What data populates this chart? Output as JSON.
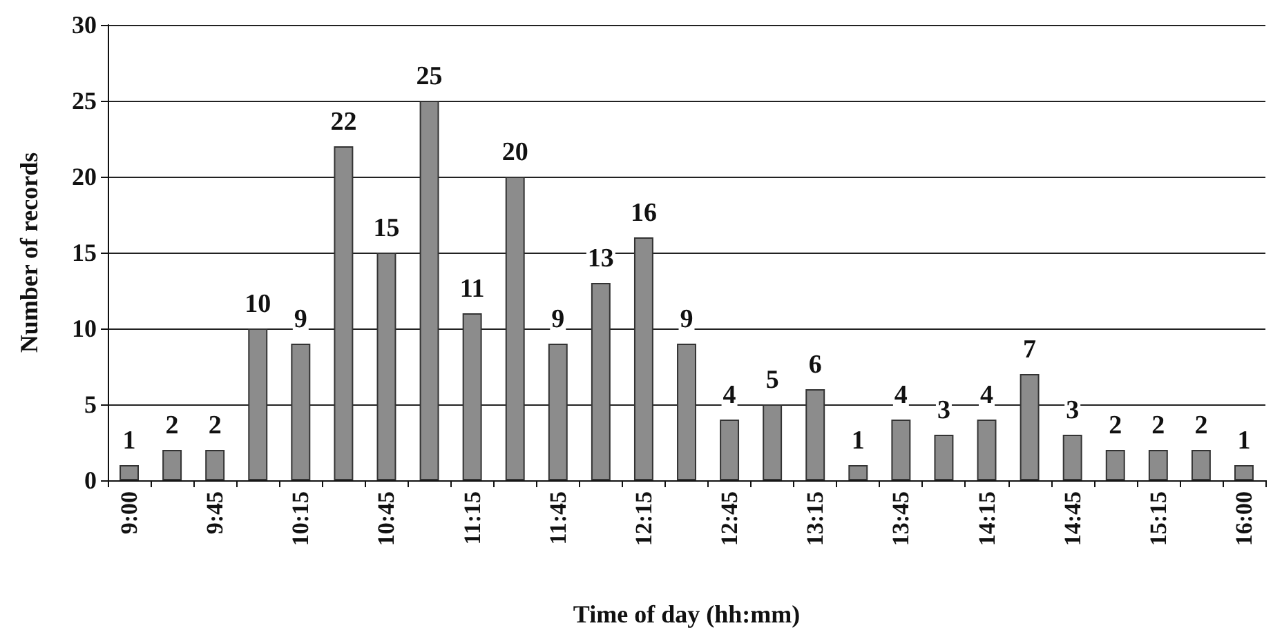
{
  "chart_data": {
    "type": "bar",
    "xlabel": "Time of day (hh:mm)",
    "ylabel": "Number of records",
    "categories": [
      "9:00",
      null,
      "9:45",
      null,
      "10:15",
      null,
      "10:45",
      null,
      "11:15",
      null,
      "11:45",
      null,
      "12:15",
      null,
      "12:45",
      null,
      "13:15",
      null,
      "13:45",
      null,
      "14:15",
      null,
      "14:45",
      null,
      "15:15",
      null,
      "16:00"
    ],
    "values": [
      1,
      2,
      2,
      10,
      9,
      22,
      15,
      25,
      11,
      20,
      9,
      13,
      16,
      9,
      4,
      5,
      6,
      1,
      4,
      3,
      4,
      7,
      3,
      2,
      2,
      2,
      1
    ],
    "color": "#8c8c8c",
    "ylim": [
      0,
      30
    ],
    "yticks": [
      0,
      5,
      10,
      15,
      20,
      25,
      30
    ],
    "grid": "y",
    "data_labels": true
  }
}
